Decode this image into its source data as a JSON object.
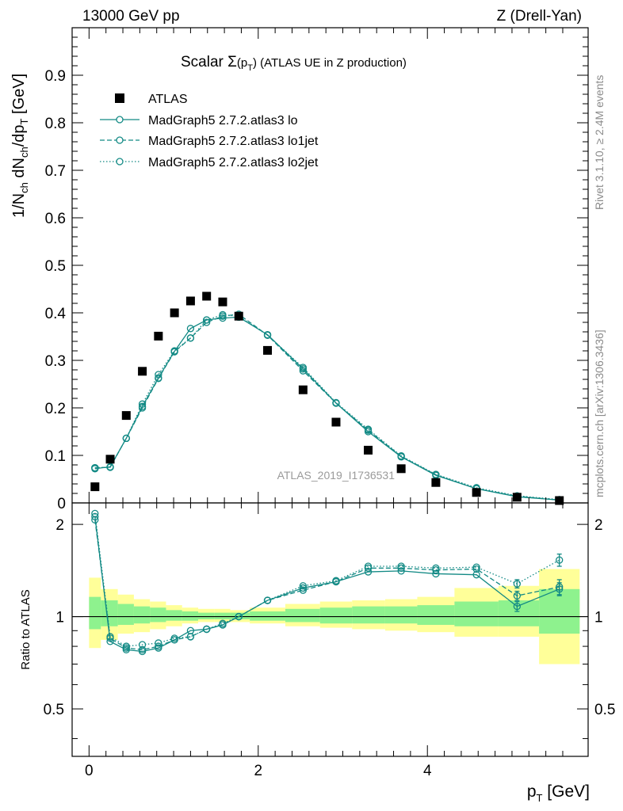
{
  "header": {
    "left": "13000 GeV pp",
    "right": "Z (Drell-Yan)"
  },
  "side_labels": {
    "rivet": "Rivet 3.1.10, ≥ 2.4M events",
    "mcplots": "mcplots.cern.ch [arXiv:1306.3436]"
  },
  "chart_data": [
    {
      "type": "scatter",
      "panel": "main",
      "title": "Scalar Σ(p_T) (ATLAS UE in Z production)",
      "title_parts": {
        "prefix": "Scalar ",
        "sigma": "Σ",
        "paren": "(p",
        "sub": "T",
        "close": ")",
        "rest": " (ATLAS UE in Z production)"
      },
      "ylabel": "1/N_ch dN_ch/dp_T [GeV]",
      "ylabel_parts": {
        "a": "1/N",
        "a_sub": "ch",
        "b": " dN",
        "b_sub": "ch",
        "c": "/dp",
        "c_sub": "T",
        "d": " [GeV]"
      },
      "xlim": [
        -0.2,
        5.9
      ],
      "ylim": [
        0,
        1.0
      ],
      "y_ticks": [
        0,
        0.1,
        0.2,
        0.3,
        0.4,
        0.5,
        0.6,
        0.7,
        0.8,
        0.9
      ],
      "y_tick_labels": [
        "0",
        "0.1",
        "0.2",
        "0.3",
        "0.4",
        "0.5",
        "0.6",
        "0.7",
        "0.8",
        "0.9"
      ],
      "watermark": "ATLAS_2019_I1736531",
      "x": [
        0.07,
        0.25,
        0.44,
        0.63,
        0.82,
        1.01,
        1.2,
        1.39,
        1.58,
        1.77,
        2.11,
        2.53,
        2.92,
        3.3,
        3.69,
        4.1,
        4.58,
        5.06,
        5.56
      ],
      "data": {
        "name": "ATLAS",
        "values": [
          0.034,
          0.092,
          0.184,
          0.277,
          0.351,
          0.4,
          0.425,
          0.435,
          0.423,
          0.393,
          0.321,
          0.238,
          0.17,
          0.111,
          0.072,
          0.043,
          0.022,
          0.012,
          0.005
        ]
      },
      "series": [
        {
          "name": "MadGraph5 2.7.2.atlas3 lo",
          "style": "solid",
          "values": [
            0.072,
            0.076,
            0.136,
            0.203,
            0.263,
            0.319,
            0.367,
            0.385,
            0.389,
            0.391,
            0.354,
            0.282,
            0.21,
            0.15,
            0.097,
            0.058,
            0.03,
            0.013,
            0.006
          ]
        },
        {
          "name": "MadGraph5 2.7.2.atlas3 lo1jet",
          "style": "dashed",
          "values": [
            0.074,
            0.075,
            0.136,
            0.2,
            0.262,
            0.318,
            0.347,
            0.38,
            0.393,
            0.397,
            0.353,
            0.278,
            0.21,
            0.153,
            0.098,
            0.059,
            0.03,
            0.014,
            0.006
          ]
        },
        {
          "name": "MadGraph5 2.7.2.atlas3 lo2jet",
          "style": "dotted",
          "values": [
            0.074,
            0.075,
            0.136,
            0.208,
            0.27,
            0.32,
            0.347,
            0.385,
            0.396,
            0.393,
            0.353,
            0.285,
            0.211,
            0.155,
            0.099,
            0.06,
            0.032,
            0.015,
            0.007
          ]
        }
      ],
      "series_color": "#138a85",
      "legend": [
        "ATLAS",
        "MadGraph5 2.7.2.atlas3 lo",
        "MadGraph5 2.7.2.atlas3 lo1jet",
        "MadGraph5 2.7.2.atlas3 lo2jet"
      ]
    },
    {
      "type": "scatter",
      "panel": "ratio",
      "ylabel": "Ratio to ATLAS",
      "xlabel": "p_T [GeV]",
      "xlabel_parts": {
        "p": "p",
        "sub": "T",
        "unit": " [GeV]"
      },
      "xlim": [
        -0.2,
        5.9
      ],
      "ylim": [
        0.35,
        2.35
      ],
      "y_ticks": [
        0.5,
        1,
        2
      ],
      "y_tick_labels": [
        "0.5",
        "1",
        "2"
      ],
      "x_ticks": [
        0,
        2,
        4
      ],
      "x_tick_labels": [
        "0",
        "2",
        "4"
      ],
      "reference": 1,
      "band_colors": {
        "inner": "#8ef28e",
        "outer": "#ffff99"
      },
      "bands": [
        {
          "x0": 0.0,
          "x1": 0.14,
          "inner": [
            0.91,
            1.16
          ],
          "outer": [
            0.79,
            1.34
          ]
        },
        {
          "x0": 0.14,
          "x1": 0.34,
          "inner": [
            0.93,
            1.13
          ],
          "outer": [
            0.84,
            1.23
          ]
        },
        {
          "x0": 0.34,
          "x1": 0.53,
          "inner": [
            0.94,
            1.1
          ],
          "outer": [
            0.88,
            1.18
          ]
        },
        {
          "x0": 0.53,
          "x1": 0.72,
          "inner": [
            0.95,
            1.08
          ],
          "outer": [
            0.89,
            1.14
          ]
        },
        {
          "x0": 0.72,
          "x1": 0.91,
          "inner": [
            0.96,
            1.07
          ],
          "outer": [
            0.91,
            1.12
          ]
        },
        {
          "x0": 0.91,
          "x1": 1.1,
          "inner": [
            0.97,
            1.05
          ],
          "outer": [
            0.93,
            1.09
          ]
        },
        {
          "x0": 1.1,
          "x1": 1.29,
          "inner": [
            0.97,
            1.04
          ],
          "outer": [
            0.95,
            1.07
          ]
        },
        {
          "x0": 1.29,
          "x1": 1.48,
          "inner": [
            0.98,
            1.03
          ],
          "outer": [
            0.96,
            1.06
          ]
        },
        {
          "x0": 1.48,
          "x1": 1.67,
          "inner": [
            0.98,
            1.03
          ],
          "outer": [
            0.96,
            1.06
          ]
        },
        {
          "x0": 1.67,
          "x1": 1.9,
          "inner": [
            0.98,
            1.03
          ],
          "outer": [
            0.96,
            1.05
          ]
        },
        {
          "x0": 1.9,
          "x1": 2.32,
          "inner": [
            0.97,
            1.04
          ],
          "outer": [
            0.95,
            1.07
          ]
        },
        {
          "x0": 2.32,
          "x1": 2.73,
          "inner": [
            0.96,
            1.06
          ],
          "outer": [
            0.93,
            1.1
          ]
        },
        {
          "x0": 2.73,
          "x1": 3.11,
          "inner": [
            0.95,
            1.07
          ],
          "outer": [
            0.92,
            1.12
          ]
        },
        {
          "x0": 3.11,
          "x1": 3.5,
          "inner": [
            0.95,
            1.08
          ],
          "outer": [
            0.91,
            1.13
          ]
        },
        {
          "x0": 3.5,
          "x1": 3.88,
          "inner": [
            0.95,
            1.08
          ],
          "outer": [
            0.9,
            1.14
          ]
        },
        {
          "x0": 3.88,
          "x1": 4.32,
          "inner": [
            0.94,
            1.09
          ],
          "outer": [
            0.89,
            1.16
          ]
        },
        {
          "x0": 4.32,
          "x1": 4.84,
          "inner": [
            0.93,
            1.12
          ],
          "outer": [
            0.86,
            1.24
          ]
        },
        {
          "x0": 4.84,
          "x1": 5.32,
          "inner": [
            0.93,
            1.13
          ],
          "outer": [
            0.86,
            1.26
          ]
        },
        {
          "x0": 5.32,
          "x1": 5.8,
          "inner": [
            0.88,
            1.23
          ],
          "outer": [
            0.7,
            1.43
          ]
        }
      ],
      "x": [
        0.07,
        0.25,
        0.44,
        0.63,
        0.82,
        1.01,
        1.2,
        1.39,
        1.58,
        1.77,
        2.11,
        2.53,
        2.92,
        3.3,
        3.69,
        4.1,
        4.58,
        5.06,
        5.56
      ],
      "series": [
        {
          "name": "MadGraph5 2.7.2.atlas3 lo",
          "style": "solid",
          "values": [
            2.12,
            0.83,
            0.78,
            0.77,
            0.79,
            0.84,
            0.9,
            0.91,
            0.94,
            1.0,
            1.13,
            1.24,
            1.3,
            1.4,
            1.41,
            1.38,
            1.37,
            1.08,
            1.23
          ],
          "errors": [
            0,
            0,
            0,
            0,
            0,
            0,
            0,
            0,
            0,
            0,
            0,
            0,
            0,
            0,
            0,
            0,
            0,
            0.04,
            0.06
          ]
        },
        {
          "name": "MadGraph5 2.7.2.atlas3 lo1jet",
          "style": "dashed",
          "values": [
            2.07,
            0.85,
            0.79,
            0.78,
            0.8,
            0.84,
            0.86,
            0.91,
            0.94,
            1.0,
            1.13,
            1.22,
            1.3,
            1.44,
            1.44,
            1.42,
            1.43,
            1.17,
            1.25
          ],
          "errors": [
            0,
            0,
            0,
            0,
            0,
            0,
            0,
            0,
            0,
            0,
            0,
            0,
            0,
            0,
            0,
            0,
            0,
            0.04,
            0.07
          ]
        },
        {
          "name": "MadGraph5 2.7.2.atlas3 lo2jet",
          "style": "dotted",
          "values": [
            2.17,
            0.86,
            0.8,
            0.81,
            0.82,
            0.85,
            0.86,
            0.91,
            0.95,
            1.0,
            1.13,
            1.26,
            1.31,
            1.46,
            1.46,
            1.44,
            1.45,
            1.28,
            1.53
          ],
          "errors": [
            0,
            0,
            0,
            0,
            0,
            0,
            0,
            0,
            0,
            0,
            0,
            0,
            0,
            0,
            0,
            0,
            0,
            0.04,
            0.07
          ]
        }
      ]
    }
  ]
}
